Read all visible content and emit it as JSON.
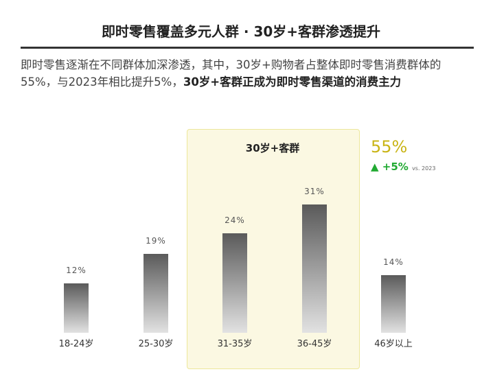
{
  "header": {
    "title": "即时零售覆盖多元人群 · 30岁+客群渗透提升"
  },
  "description": {
    "normal": "即时零售逐渐在不同群体加深渗透，其中，30岁+购物者占整体即时零售消费群体的55%，与2023年相比提升5%，",
    "bold": "30岁+客群正成为即时零售渠道的消费主力"
  },
  "highlight": {
    "label": "30岁+客群",
    "share": "55%",
    "change": "+5%",
    "change_icon": "triangle-up-icon",
    "comparison": "vs. 2023",
    "accent": "#c9b416",
    "positive_color": "#22aa33"
  },
  "chart_data": {
    "type": "bar",
    "categories": [
      "18-24岁",
      "25-30岁",
      "31-35岁",
      "36-45岁",
      "46岁以上"
    ],
    "values": [
      12,
      19,
      24,
      31,
      14
    ],
    "labels": [
      "12%",
      "19%",
      "24%",
      "31%",
      "14%"
    ],
    "ylim": [
      0,
      31
    ],
    "grid": false,
    "highlighted_categories": [
      "31-35岁",
      "36-45岁"
    ]
  }
}
